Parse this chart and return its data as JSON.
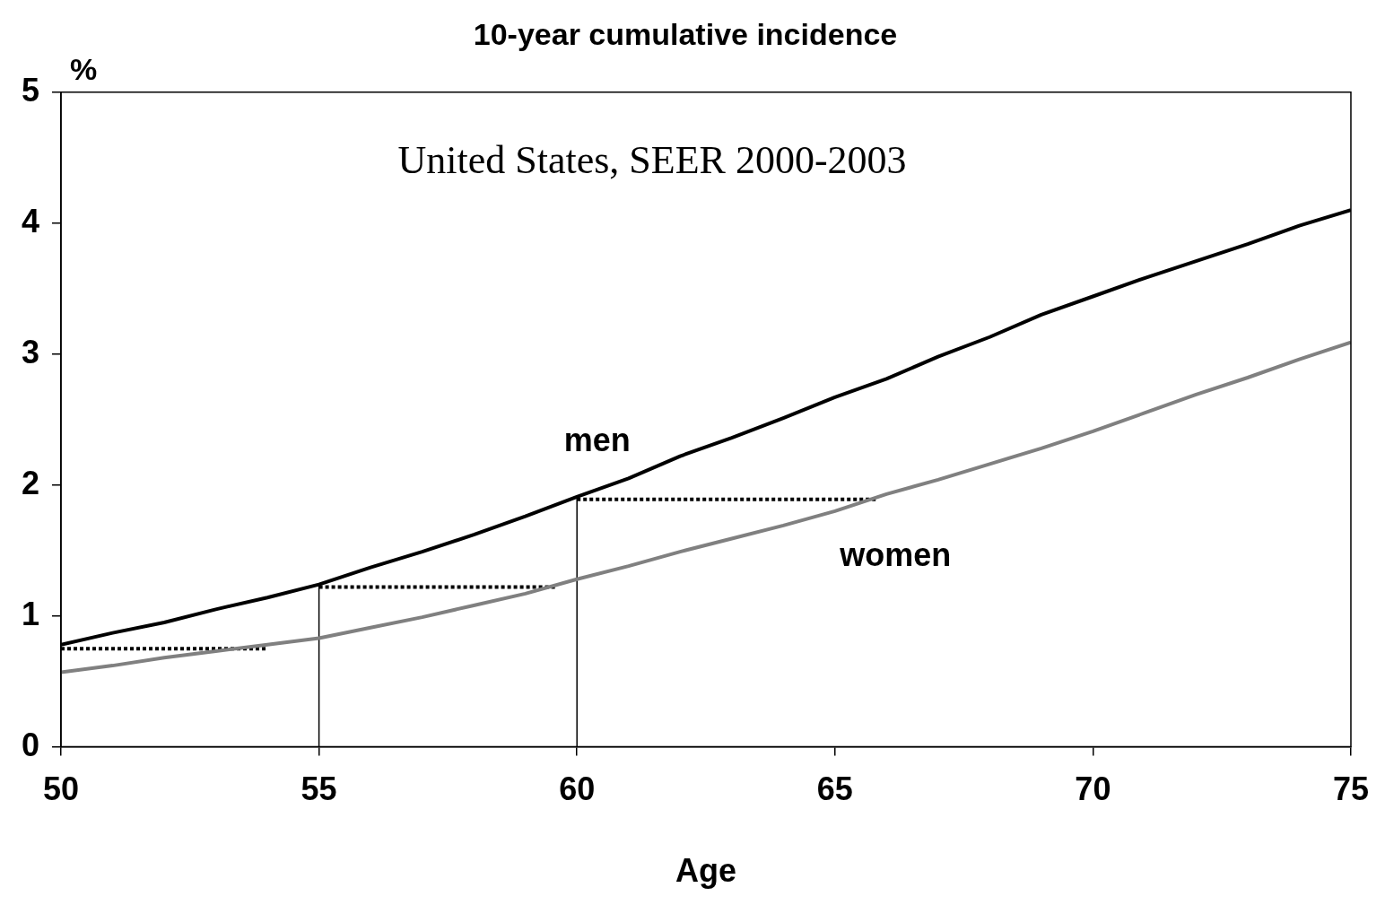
{
  "chart_data": {
    "type": "line",
    "title": "10-year cumulative incidence",
    "xlabel": "Age",
    "ylabel": "%",
    "annotations": [
      "United States, SEER 2000-2003"
    ],
    "x": [
      50,
      51,
      52,
      53,
      54,
      55,
      56,
      57,
      58,
      59,
      60,
      61,
      62,
      63,
      64,
      65,
      66,
      67,
      68,
      69,
      70,
      71,
      72,
      73,
      74,
      75
    ],
    "xlim": [
      50,
      75
    ],
    "xticks": [
      50,
      55,
      60,
      65,
      70,
      75
    ],
    "ylim": [
      0,
      5
    ],
    "yticks": [
      0,
      1,
      2,
      3,
      4,
      5
    ],
    "grid": false,
    "legend": false,
    "marker": "none",
    "line_style": "solid",
    "series": [
      {
        "name": "men",
        "color": "#000000",
        "values": [
          0.78,
          0.87,
          0.95,
          1.05,
          1.14,
          1.24,
          1.37,
          1.49,
          1.62,
          1.76,
          1.91,
          2.05,
          2.22,
          2.36,
          2.51,
          2.67,
          2.81,
          2.98,
          3.13,
          3.3,
          3.44,
          3.58,
          3.71,
          3.84,
          3.98,
          4.1
        ]
      },
      {
        "name": "women",
        "color": "#808080",
        "values": [
          0.57,
          0.62,
          0.68,
          0.73,
          0.78,
          0.83,
          0.91,
          0.99,
          1.08,
          1.17,
          1.28,
          1.38,
          1.49,
          1.59,
          1.69,
          1.8,
          1.93,
          2.04,
          2.16,
          2.28,
          2.41,
          2.55,
          2.69,
          2.82,
          2.96,
          3.09
        ]
      },
      {
        "color": "#000000",
        "x": [
          55,
          55
        ],
        "values": [
          0,
          1.24
        ]
      },
      {
        "color": "#000000",
        "x": [
          60,
          60
        ],
        "values": [
          0,
          1.91
        ]
      },
      {
        "color": "#000000",
        "line_style": "dotted",
        "x": [
          50,
          54
        ],
        "values": [
          0.75,
          0.75
        ]
      },
      {
        "color": "#000000",
        "line_style": "dotted",
        "x": [
          55,
          59.6
        ],
        "values": [
          1.22,
          1.22
        ]
      },
      {
        "color": "#000000",
        "line_style": "dotted",
        "x": [
          60,
          65.8
        ],
        "values": [
          1.89,
          1.89
        ]
      }
    ]
  }
}
